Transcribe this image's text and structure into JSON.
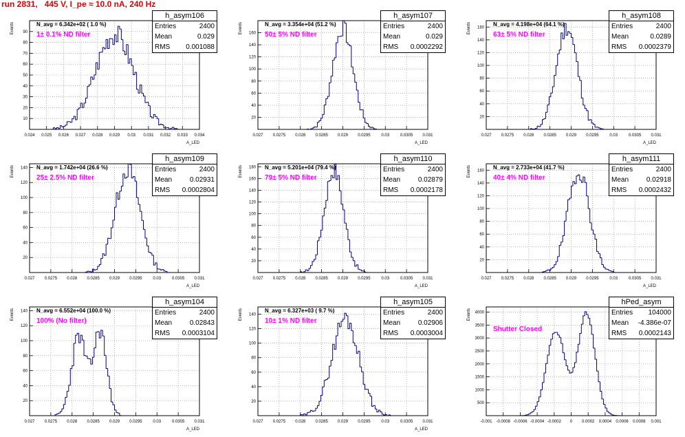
{
  "title": "run 2831,   445 V, I_pe ≈ 10.0 nA, 240 Hz",
  "stat_labels": {
    "entries": "Entries",
    "mean": "Mean",
    "rms": "RMS"
  },
  "colors": {
    "histogram": "#000080",
    "title_text": "#e00000",
    "filter_text": "#ff00ff"
  },
  "chart_data": [
    {
      "type": "bar",
      "name": "h_asym106",
      "navg": "N_avg = 6.342e+02 ( 1.0 %)",
      "filter": "1± 0.1% ND filter",
      "entries": "2400",
      "mean": "0.029",
      "rms": "0.001088",
      "ylabel": "Events",
      "xlabel": "A_LED",
      "xlim": [
        0.024,
        0.034
      ],
      "ylim": [
        0,
        100
      ],
      "xticks": [
        "0.024",
        "0.025",
        "0.026",
        "0.027",
        "0.028",
        "0.029",
        "0.03",
        "0.031",
        "0.032",
        "0.033",
        "0.034"
      ],
      "yticks": [
        "10",
        "20",
        "30",
        "40",
        "50",
        "60",
        "70",
        "80",
        "90"
      ],
      "mu": 0.029,
      "sigma": 0.001088,
      "peak": 88,
      "bins": 100,
      "shape": "single",
      "seed": 3
    },
    {
      "type": "bar",
      "name": "h_asym107",
      "navg": "N_avg = 3.354e+04 (51.2 %)",
      "filter": "50± 5% ND filter",
      "entries": "2400",
      "mean": "0.029",
      "rms": "0.0002292",
      "ylabel": "Events",
      "xlabel": "A_LED",
      "xlim": [
        0.027,
        0.031
      ],
      "ylim": [
        0,
        180
      ],
      "xticks": [
        "0.027",
        "0.0275",
        "0.028",
        "0.0285",
        "0.029",
        "0.0295",
        "0.03",
        "0.0305",
        "0.031"
      ],
      "yticks": [
        "20",
        "40",
        "60",
        "80",
        "100",
        "120",
        "140",
        "160"
      ],
      "mu": 0.029,
      "sigma": 0.0002292,
      "peak": 168,
      "bins": 100,
      "shape": "single",
      "seed": 7
    },
    {
      "type": "bar",
      "name": "h_asym108",
      "navg": "N_avg = 4.198e+04 (64.1 %)",
      "filter": "63± 5% ND filter",
      "entries": "2400",
      "mean": "0.0289",
      "rms": "0.0002379",
      "ylabel": "Events",
      "xlabel": "A_LED",
      "xlim": [
        0.027,
        0.031
      ],
      "ylim": [
        0,
        170
      ],
      "xticks": [
        "0.027",
        "0.0275",
        "0.028",
        "0.0285",
        "0.029",
        "0.0295",
        "0.03",
        "0.0305",
        "0.031"
      ],
      "yticks": [
        "20",
        "40",
        "60",
        "80",
        "100",
        "120",
        "140",
        "160"
      ],
      "mu": 0.0289,
      "sigma": 0.0002379,
      "peak": 160,
      "bins": 100,
      "shape": "single",
      "seed": 11
    },
    {
      "type": "bar",
      "name": "h_asym109",
      "navg": "N_avg = 1.742e+04 (26.6 %)",
      "filter": "25± 2.5% ND filter",
      "entries": "2400",
      "mean": "0.02931",
      "rms": "0.0002804",
      "ylabel": "Events",
      "xlabel": "A_LED",
      "xlim": [
        0.027,
        0.031
      ],
      "ylim": [
        0,
        145
      ],
      "xticks": [
        "0.027",
        "0.0275",
        "0.028",
        "0.0285",
        "0.029",
        "0.0295",
        "0.03",
        "0.0305",
        "0.031"
      ],
      "yticks": [
        "20",
        "40",
        "60",
        "80",
        "100",
        "120",
        "140"
      ],
      "mu": 0.02931,
      "sigma": 0.0002804,
      "peak": 138,
      "bins": 100,
      "shape": "single",
      "seed": 13
    },
    {
      "type": "bar",
      "name": "h_asym110",
      "navg": "N_avg = 5.201e+04 (79.4 %)",
      "filter": "79± 5% ND filter",
      "entries": "2400",
      "mean": "0.02879",
      "rms": "0.0002178",
      "ylabel": "Events",
      "xlabel": "A_LED",
      "xlim": [
        0.027,
        0.031
      ],
      "ylim": [
        0,
        185
      ],
      "xticks": [
        "0.027",
        "0.0275",
        "0.028",
        "0.0285",
        "0.029",
        "0.0295",
        "0.03",
        "0.0305",
        "0.031"
      ],
      "yticks": [
        "20",
        "40",
        "60",
        "80",
        "100",
        "120",
        "140",
        "160",
        "180"
      ],
      "mu": 0.02879,
      "sigma": 0.0002178,
      "peak": 175,
      "bins": 100,
      "shape": "single",
      "seed": 17
    },
    {
      "type": "bar",
      "name": "h_asym111",
      "navg": "N_avg = 2.733e+04 (41.7 %)",
      "filter": "40± 4% ND filter",
      "entries": "2400",
      "mean": "0.02918",
      "rms": "0.0002432",
      "ylabel": "Events",
      "xlabel": "A_LED",
      "xlim": [
        0.027,
        0.031
      ],
      "ylim": [
        0,
        170
      ],
      "xticks": [
        "0.027",
        "0.0275",
        "0.028",
        "0.0285",
        "0.029",
        "0.0295",
        "0.03",
        "0.0305",
        "0.031"
      ],
      "yticks": [
        "20",
        "40",
        "60",
        "80",
        "100",
        "120",
        "140",
        "160"
      ],
      "mu": 0.02918,
      "sigma": 0.0002432,
      "peak": 160,
      "bins": 100,
      "shape": "single",
      "seed": 19
    },
    {
      "type": "bar",
      "name": "h_asym104",
      "navg": "N_avg = 6.552e+04 (100.0 %)",
      "filter": "100% (No filter)",
      "entries": "2400",
      "mean": "0.02843",
      "rms": "0.0003104",
      "ylabel": "Events",
      "xlabel": "A_LED",
      "xlim": [
        0.027,
        0.031
      ],
      "ylim": [
        0,
        145
      ],
      "xticks": [
        "0.027",
        "0.0275",
        "0.028",
        "0.0285",
        "0.029",
        "0.0295",
        "0.03",
        "0.0305",
        "0.031"
      ],
      "yticks": [
        "20",
        "40",
        "60",
        "80",
        "100",
        "120",
        "140"
      ],
      "mu": 0.02843,
      "sigma": 0.0003104,
      "peak": 115,
      "bins": 100,
      "shape": "double",
      "seed": 23
    },
    {
      "type": "bar",
      "name": "h_asym105",
      "navg": "N_avg = 6.327e+03 ( 9.7 %)",
      "filter": "10± 1% ND filter",
      "entries": "2400",
      "mean": "0.02906",
      "rms": "0.0003004",
      "ylabel": "Events",
      "xlabel": "A_LED",
      "xlim": [
        0.027,
        0.031
      ],
      "ylim": [
        0,
        150
      ],
      "xticks": [
        "0.027",
        "0.0275",
        "0.028",
        "0.0285",
        "0.029",
        "0.0295",
        "0.03",
        "0.0305",
        "0.031"
      ],
      "yticks": [
        "20",
        "40",
        "60",
        "80",
        "100",
        "120",
        "140"
      ],
      "mu": 0.02906,
      "sigma": 0.0003004,
      "peak": 135,
      "bins": 100,
      "shape": "single",
      "seed": 29
    },
    {
      "type": "bar",
      "name": "hPed_asym",
      "navg": "",
      "filter": "Shutter Closed",
      "entries": "104000",
      "mean": "-4.386e-07",
      "rms": "0.0002143",
      "ylabel": "Events",
      "xlabel": "",
      "xlim": [
        -0.001,
        0.001
      ],
      "ylim": [
        0,
        4200
      ],
      "xticks": [
        "-0.001",
        "-0.0008",
        "-0.0006",
        "-0.0004",
        "-0.0002",
        "0",
        "0.0002",
        "0.0004",
        "0.0006",
        "0.0008",
        "0.001"
      ],
      "yticks": [
        "500",
        "1000",
        "1500",
        "2000",
        "2500",
        "3000",
        "3500",
        "4000"
      ],
      "mu": 0,
      "sigma": 0.0002143,
      "peak": 3950,
      "bins": 100,
      "shape": "ped",
      "seed": 31
    }
  ]
}
